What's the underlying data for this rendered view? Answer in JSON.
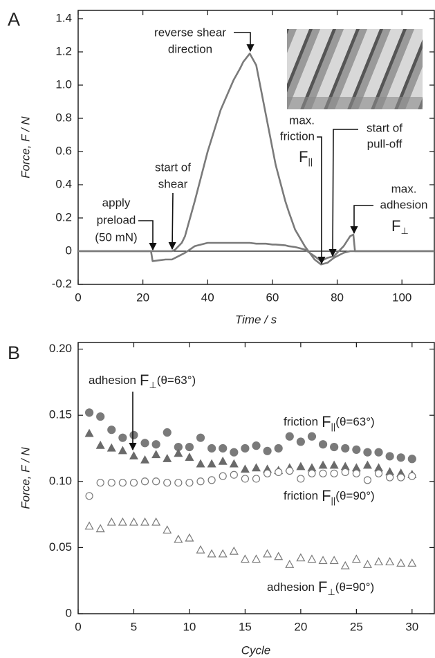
{
  "chart_data": [
    {
      "type": "line",
      "panel_label": "A",
      "xlabel": "Time / s",
      "ylabel": "Force, F / N",
      "xlim": [
        0,
        110
      ],
      "xticks": [
        0,
        20,
        40,
        60,
        80,
        100
      ],
      "ylim": [
        -0.2,
        1.45
      ],
      "yticks": [
        -0.2,
        0,
        0.2,
        0.4,
        0.6,
        0.8,
        {
          "value": 1.0,
          "label": "1.0"
        },
        1.2,
        1.4
      ],
      "zero_line": true,
      "x": [
        0,
        20,
        22.5,
        23,
        27,
        29,
        30,
        32,
        33,
        36,
        40,
        44,
        48,
        50,
        51,
        53,
        55,
        58,
        60,
        61,
        64,
        65,
        67,
        70,
        73,
        75,
        77,
        79,
        82,
        84,
        85,
        85.5,
        90,
        110
      ],
      "series": [
        {
          "color": "#7a7a7a",
          "values": [
            0,
            0,
            0,
            0,
            0,
            0,
            0.01,
            0.05,
            0.09,
            0.3,
            0.6,
            0.85,
            1.03,
            1.1,
            1.14,
            1.19,
            1.12,
            0.82,
            0.62,
            0.52,
            0.3,
            0.24,
            0.13,
            0.03,
            -0.05,
            -0.08,
            -0.07,
            -0.04,
            -0.01,
            0,
            0,
            0,
            0,
            0
          ]
        },
        {
          "color": "#7a7a7a",
          "values": [
            0,
            0,
            0,
            -0.06,
            -0.05,
            -0.05,
            -0.04,
            -0.02,
            -0.01,
            0.03,
            0.05,
            0.05,
            0.05,
            0.05,
            0.05,
            0.05,
            0.045,
            0.045,
            0.04,
            0.04,
            0.035,
            0.03,
            0.025,
            0.01,
            -0.03,
            -0.06,
            -0.04,
            -0.03,
            0.03,
            0.09,
            0.1,
            0,
            0,
            0
          ]
        }
      ],
      "annotations": [
        {
          "lines": [
            "reverse shear",
            "direction"
          ]
        },
        {
          "lines": [
            "start of",
            "shear"
          ]
        },
        {
          "lines": [
            "apply",
            "preload",
            "(50 mN)"
          ]
        },
        {
          "lines": [
            "max.",
            "friction"
          ],
          "symbol": "F",
          "sub": "||"
        },
        {
          "lines": [
            "start of",
            "pull-off"
          ]
        },
        {
          "lines": [
            "max.",
            "adhesion"
          ],
          "symbol": "F",
          "sub": "⊥"
        }
      ]
    },
    {
      "type": "scatter",
      "panel_label": "B",
      "xlabel": "Cycle",
      "ylabel": "Force, F / N",
      "xlim": [
        0,
        32
      ],
      "xticks": [
        0,
        5,
        10,
        15,
        20,
        25,
        30
      ],
      "ylim": [
        0,
        0.205
      ],
      "yticks": [
        0,
        0.05,
        {
          "value": 0.1,
          "label": "0.10"
        },
        0.15,
        {
          "value": 0.2,
          "label": "0.20"
        }
      ],
      "x": [
        1,
        2,
        3,
        4,
        5,
        6,
        7,
        8,
        9,
        10,
        11,
        12,
        13,
        14,
        15,
        16,
        17,
        18,
        19,
        20,
        21,
        22,
        23,
        24,
        25,
        26,
        27,
        28,
        29,
        30
      ],
      "series": [
        {
          "name": "friction",
          "symbol": "F",
          "sub": "||",
          "condition": "(θ=63°)",
          "marker": "circle",
          "filled": true,
          "color": "#7a7a7a",
          "values": [
            0.152,
            0.149,
            0.139,
            0.133,
            0.135,
            0.129,
            0.128,
            0.137,
            0.126,
            0.126,
            0.133,
            0.125,
            0.125,
            0.122,
            0.125,
            0.127,
            0.123,
            0.125,
            0.134,
            0.13,
            0.134,
            0.128,
            0.126,
            0.125,
            0.124,
            0.122,
            0.122,
            0.119,
            0.118,
            0.117
          ]
        },
        {
          "name": "adhesion",
          "symbol": "F",
          "sub": "⊥",
          "condition": "(θ=63°)",
          "marker": "triangle",
          "filled": true,
          "color": "#6a6a6a",
          "values": [
            0.136,
            0.127,
            0.125,
            0.123,
            0.119,
            0.116,
            0.12,
            0.117,
            0.121,
            0.118,
            0.113,
            0.113,
            0.115,
            0.113,
            0.109,
            0.11,
            0.109,
            0.108,
            0.11,
            0.111,
            0.11,
            0.112,
            0.112,
            0.111,
            0.11,
            0.112,
            0.11,
            0.107,
            0.106,
            0.105
          ]
        },
        {
          "name": "friction",
          "symbol": "F",
          "sub": "||",
          "condition": "(θ=90°)",
          "marker": "circle",
          "filled": false,
          "color": "#7a7a7a",
          "values": [
            0.089,
            0.099,
            0.099,
            0.099,
            0.099,
            0.1,
            0.1,
            0.099,
            0.099,
            0.099,
            0.1,
            0.101,
            0.104,
            0.105,
            0.102,
            0.102,
            0.106,
            0.107,
            0.108,
            0.102,
            0.106,
            0.106,
            0.106,
            0.107,
            0.106,
            0.101,
            0.106,
            0.103,
            0.103,
            0.104
          ]
        },
        {
          "name": "adhesion",
          "symbol": "F",
          "sub": "⊥",
          "condition": "(θ=90°)",
          "marker": "triangle",
          "filled": false,
          "color": "#7a7a7a",
          "values": [
            0.066,
            0.064,
            0.069,
            0.069,
            0.069,
            0.069,
            0.069,
            0.063,
            0.056,
            0.057,
            0.048,
            0.045,
            0.045,
            0.047,
            0.041,
            0.041,
            0.045,
            0.043,
            0.037,
            0.042,
            0.041,
            0.04,
            0.04,
            0.036,
            0.041,
            0.037,
            0.039,
            0.039,
            0.038,
            0.038
          ]
        }
      ]
    }
  ]
}
